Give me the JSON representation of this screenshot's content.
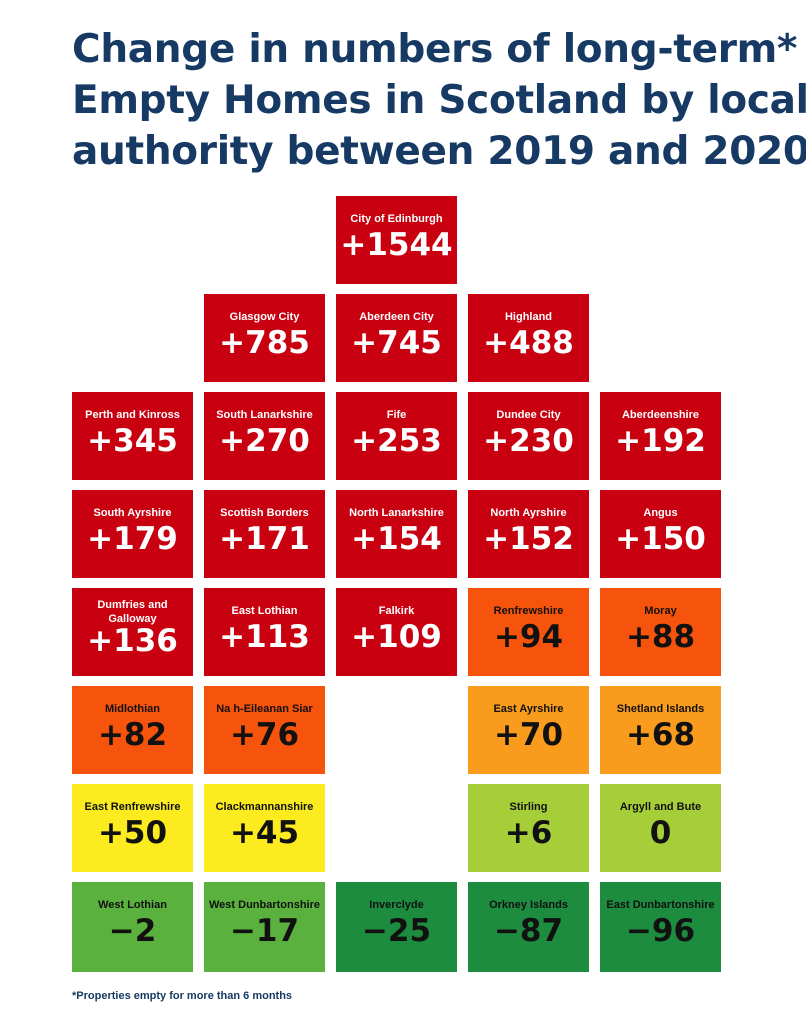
{
  "title_lines": [
    "Change in numbers of long-term*",
    "Empty Homes in Scotland by local",
    "authority between 2019 and 2020"
  ],
  "footnote": "*Properties empty for more than 6 months",
  "colors": {
    "high": "#c8000f",
    "mid_high": "#f6530d",
    "mid": "#f99b1c",
    "low": "#fbeb1f",
    "small": "#a6ce38",
    "decrease_small": "#5bb13d",
    "decrease": "#1d8c3f",
    "title": "#163a63"
  },
  "chart_data": {
    "type": "table",
    "title": "Change in numbers of long-term* Empty Homes in Scotland by local authority between 2019 and 2020",
    "tiles": [
      {
        "name": "City of Edinburgh",
        "label": "+1544",
        "value": 1544,
        "band": "high",
        "row": 0,
        "col": 2
      },
      {
        "name": "Glasgow City",
        "label": "+785",
        "value": 785,
        "band": "high",
        "row": 1,
        "col": 1
      },
      {
        "name": "Aberdeen City",
        "label": "+745",
        "value": 745,
        "band": "high",
        "row": 1,
        "col": 2
      },
      {
        "name": "Highland",
        "label": "+488",
        "value": 488,
        "band": "high",
        "row": 1,
        "col": 3
      },
      {
        "name": "Perth and Kinross",
        "label": "+345",
        "value": 345,
        "band": "high",
        "row": 2,
        "col": 0
      },
      {
        "name": "South Lanarkshire",
        "label": "+270",
        "value": 270,
        "band": "high",
        "row": 2,
        "col": 1
      },
      {
        "name": "Fife",
        "label": "+253",
        "value": 253,
        "band": "high",
        "row": 2,
        "col": 2
      },
      {
        "name": "Dundee City",
        "label": "+230",
        "value": 230,
        "band": "high",
        "row": 2,
        "col": 3
      },
      {
        "name": "Aberdeenshire",
        "label": "+192",
        "value": 192,
        "band": "high",
        "row": 2,
        "col": 4
      },
      {
        "name": "South Ayrshire",
        "label": "+179",
        "value": 179,
        "band": "high",
        "row": 3,
        "col": 0
      },
      {
        "name": "Scottish Borders",
        "label": "+171",
        "value": 171,
        "band": "high",
        "row": 3,
        "col": 1
      },
      {
        "name": "North Lanarkshire",
        "label": "+154",
        "value": 154,
        "band": "high",
        "row": 3,
        "col": 2
      },
      {
        "name": "North Ayrshire",
        "label": "+152",
        "value": 152,
        "band": "high",
        "row": 3,
        "col": 3
      },
      {
        "name": "Angus",
        "label": "+150",
        "value": 150,
        "band": "high",
        "row": 3,
        "col": 4
      },
      {
        "name": "Dumfries and Galloway",
        "label": "+136",
        "value": 136,
        "band": "high",
        "row": 4,
        "col": 0
      },
      {
        "name": "East Lothian",
        "label": "+113",
        "value": 113,
        "band": "high",
        "row": 4,
        "col": 1
      },
      {
        "name": "Falkirk",
        "label": "+109",
        "value": 109,
        "band": "high",
        "row": 4,
        "col": 2
      },
      {
        "name": "Renfrewshire",
        "label": "+94",
        "value": 94,
        "band": "mid_high",
        "row": 4,
        "col": 3
      },
      {
        "name": "Moray",
        "label": "+88",
        "value": 88,
        "band": "mid_high",
        "row": 4,
        "col": 4
      },
      {
        "name": "Midlothian",
        "label": "+82",
        "value": 82,
        "band": "mid_high",
        "row": 5,
        "col": 0
      },
      {
        "name": "Na h-Eileanan Siar",
        "label": "+76",
        "value": 76,
        "band": "mid_high",
        "row": 5,
        "col": 1
      },
      {
        "name": "East Ayrshire",
        "label": "+70",
        "value": 70,
        "band": "mid",
        "row": 5,
        "col": 3
      },
      {
        "name": "Shetland Islands",
        "label": "+68",
        "value": 68,
        "band": "mid",
        "row": 5,
        "col": 4
      },
      {
        "name": "East Renfrewshire",
        "label": "+50",
        "value": 50,
        "band": "low",
        "row": 6,
        "col": 0
      },
      {
        "name": "Clackmannanshire",
        "label": "+45",
        "value": 45,
        "band": "low",
        "row": 6,
        "col": 1
      },
      {
        "name": "Stirling",
        "label": "+6",
        "value": 6,
        "band": "small",
        "row": 6,
        "col": 3
      },
      {
        "name": "Argyll and Bute",
        "label": "0",
        "value": 0,
        "band": "small",
        "row": 6,
        "col": 4
      },
      {
        "name": "West Lothian",
        "label": "-2",
        "value": -2,
        "band": "decrease_small",
        "row": 7,
        "col": 0
      },
      {
        "name": "West Dunbartonshire",
        "label": "-17",
        "value": -17,
        "band": "decrease_small",
        "row": 7,
        "col": 1
      },
      {
        "name": "Inverclyde",
        "label": "-25",
        "value": -25,
        "band": "decrease",
        "row": 7,
        "col": 2
      },
      {
        "name": "Orkney Islands",
        "label": "-87",
        "value": -87,
        "band": "decrease",
        "row": 7,
        "col": 3
      },
      {
        "name": "East Dunbartonshire",
        "label": "-96",
        "value": -96,
        "band": "decrease",
        "row": 7,
        "col": 4
      }
    ]
  }
}
